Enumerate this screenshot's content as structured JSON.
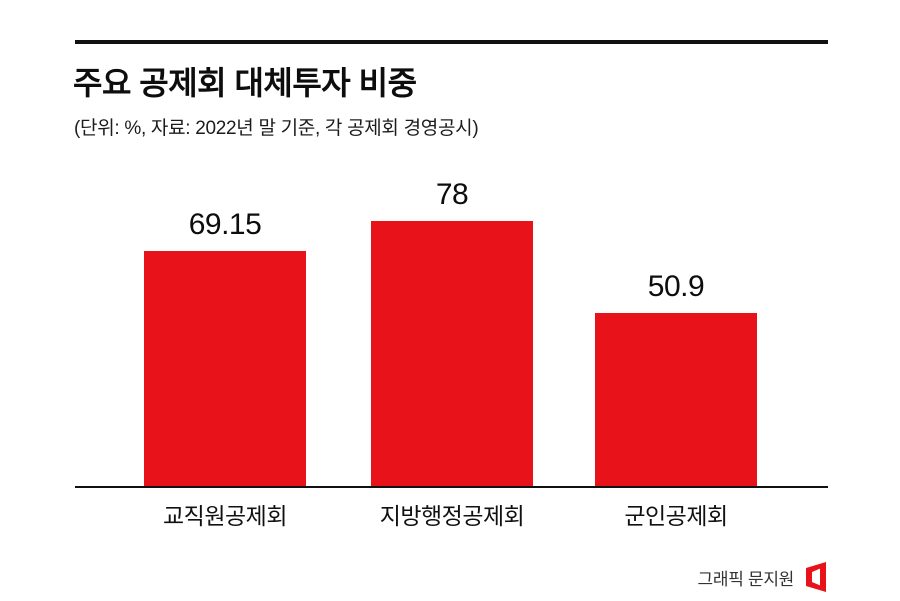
{
  "header": {
    "title": "주요 공제회 대체투자 비중",
    "subtitle": "(단위: %, 자료: 2022년 말 기준, 각 공제회 경영공시)"
  },
  "chart_data": {
    "type": "bar",
    "title": "주요 공제회 대체투자 비중",
    "unit": "%",
    "source_note": "2022년 말 기준, 각 공제회 경영공시",
    "categories": [
      "교직원공제회",
      "지방행정공제회",
      "군인공제회"
    ],
    "values": [
      69.15,
      78,
      50.9
    ],
    "value_labels": [
      "69.15",
      "78",
      "50.9"
    ],
    "bar_color": "#e8121a",
    "ylim": [
      0,
      80
    ],
    "grid": false,
    "legend": false
  },
  "footer": {
    "credit": "그래픽 문지원",
    "logo_color": "#e8121a"
  }
}
